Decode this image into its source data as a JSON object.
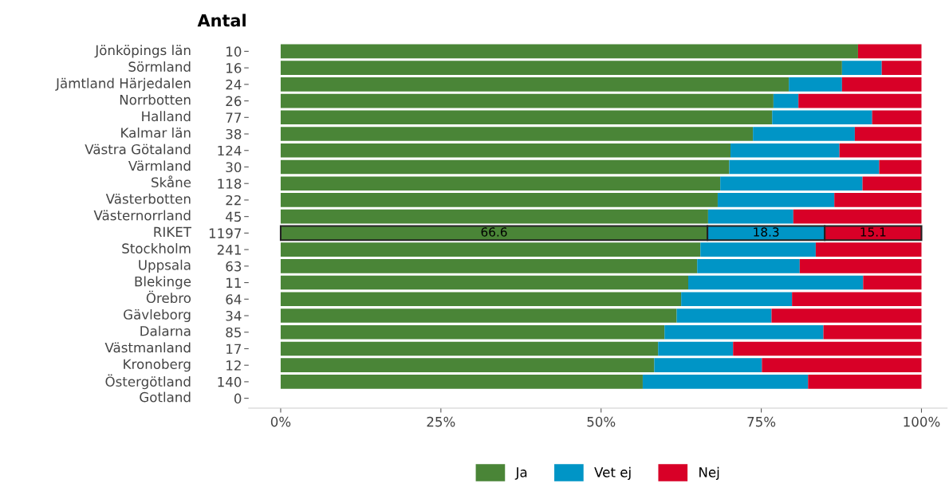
{
  "chart_data": {
    "type": "bar",
    "orientation": "horizontal",
    "stacked": true,
    "title": "Antal",
    "categories": [
      "Jönköpings län",
      "Sörmland",
      "Jämtland Härjedalen",
      "Norrbotten",
      "Halland",
      "Kalmar län",
      "Västra Götaland",
      "Värmland",
      "Skåne",
      "Västerbotten",
      "Västernorrland",
      "RIKET",
      "Stockholm",
      "Uppsala",
      "Blekinge",
      "Örebro",
      "Gävleborg",
      "Dalarna",
      "Västmanland",
      "Kronoberg",
      "Östergötland",
      "Gotland"
    ],
    "y2_categories": [
      "10",
      "16",
      "24",
      "26",
      "77",
      "38",
      "124",
      "30",
      "118",
      "22",
      "45",
      "1197",
      "241",
      "63",
      "11",
      "64",
      "34",
      "85",
      "17",
      "12",
      "140",
      "0"
    ],
    "series": [
      {
        "name": "Ja",
        "color": "#4a8537",
        "values": [
          90.1,
          87.6,
          79.3,
          76.9,
          76.7,
          73.7,
          70.2,
          70.0,
          68.6,
          68.2,
          66.7,
          66.6,
          65.5,
          65.0,
          63.6,
          62.5,
          61.8,
          59.9,
          58.9,
          58.3,
          56.5,
          null
        ],
        "value_labels": [
          null,
          null,
          null,
          null,
          null,
          null,
          null,
          null,
          null,
          null,
          null,
          "66.6",
          null,
          null,
          null,
          null,
          null,
          null,
          null,
          null,
          null,
          null
        ]
      },
      {
        "name": "Vet ej",
        "color": "#0095c6",
        "values": [
          0,
          6.2,
          8.3,
          3.9,
          15.6,
          15.9,
          17.0,
          23.4,
          22.2,
          18.2,
          13.3,
          18.3,
          18.0,
          16.0,
          27.3,
          17.3,
          14.8,
          24.8,
          11.7,
          16.8,
          25.8,
          null
        ],
        "value_labels": [
          null,
          null,
          null,
          null,
          null,
          null,
          null,
          null,
          null,
          null,
          null,
          "18.3",
          null,
          null,
          null,
          null,
          null,
          null,
          null,
          null,
          null,
          null
        ]
      },
      {
        "name": "Nej",
        "color": "#d80027",
        "values": [
          9.9,
          6.2,
          12.4,
          19.2,
          7.7,
          10.4,
          12.8,
          6.6,
          9.2,
          13.6,
          20.0,
          15.1,
          16.5,
          19.0,
          9.1,
          20.2,
          23.4,
          15.3,
          29.4,
          24.9,
          17.7,
          null
        ],
        "value_labels": [
          null,
          null,
          null,
          null,
          null,
          null,
          null,
          null,
          null,
          null,
          null,
          "15.1",
          null,
          null,
          null,
          null,
          null,
          null,
          null,
          null,
          null,
          null
        ]
      }
    ],
    "xlim": [
      -5,
      104
    ],
    "xticks": [
      {
        "value": 0,
        "label": "0%"
      },
      {
        "value": 25,
        "label": "25%"
      },
      {
        "value": 50,
        "label": "50%"
      },
      {
        "value": 75,
        "label": "75%"
      },
      {
        "value": 100,
        "label": "100%"
      }
    ],
    "grid": false,
    "legend": "bottom"
  }
}
